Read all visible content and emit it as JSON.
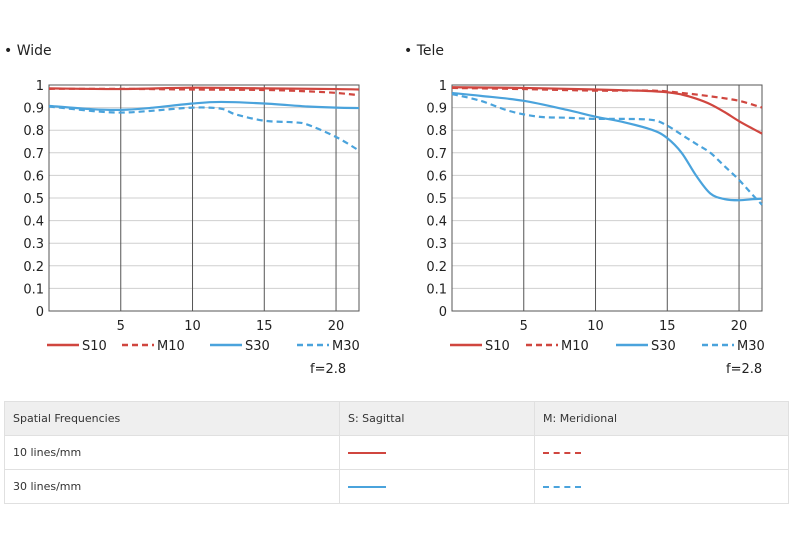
{
  "chart_data": [
    {
      "type": "line",
      "title": "• Wide",
      "xlim": [
        0,
        21.6
      ],
      "ylim": [
        0,
        1
      ],
      "xticks": [
        5,
        10,
        15,
        20
      ],
      "yticks": [
        0,
        0.1,
        0.2,
        0.3,
        0.4,
        0.5,
        0.6,
        0.7,
        0.8,
        0.9,
        1
      ],
      "ytick_labels": [
        "0",
        "0.1",
        "0.2",
        "0.3",
        "0.4",
        "0.5",
        "0.6",
        "0.7",
        "0.8",
        "0.9",
        "1"
      ],
      "grid": true,
      "legend_position": "bottom",
      "f_number": "f=2.8",
      "series": [
        {
          "name": "S10",
          "color": "#d0463f",
          "dashed": false,
          "x": [
            0,
            5,
            10,
            15,
            20,
            21.6
          ],
          "y": [
            0.985,
            0.982,
            0.988,
            0.985,
            0.982,
            0.98
          ]
        },
        {
          "name": "M10",
          "color": "#d0463f",
          "dashed": true,
          "x": [
            0,
            5,
            10,
            15,
            18,
            20,
            21.6
          ],
          "y": [
            0.983,
            0.983,
            0.98,
            0.978,
            0.972,
            0.965,
            0.955
          ]
        },
        {
          "name": "S30",
          "color": "#4aa3dc",
          "dashed": false,
          "x": [
            0,
            3,
            5,
            7,
            10,
            12,
            15,
            18,
            20,
            21.6
          ],
          "y": [
            0.908,
            0.893,
            0.89,
            0.898,
            0.918,
            0.925,
            0.918,
            0.905,
            0.9,
            0.898
          ]
        },
        {
          "name": "M30",
          "color": "#4aa3dc",
          "dashed": true,
          "x": [
            0,
            3,
            5,
            7,
            10,
            12,
            13,
            15,
            17,
            18,
            20,
            21.6
          ],
          "y": [
            0.905,
            0.885,
            0.878,
            0.885,
            0.9,
            0.895,
            0.87,
            0.842,
            0.835,
            0.825,
            0.77,
            0.71
          ]
        }
      ]
    },
    {
      "type": "line",
      "title": "• Tele",
      "xlim": [
        0,
        21.6
      ],
      "ylim": [
        0,
        1
      ],
      "xticks": [
        5,
        10,
        15,
        20
      ],
      "yticks": [
        0,
        0.1,
        0.2,
        0.3,
        0.4,
        0.5,
        0.6,
        0.7,
        0.8,
        0.9,
        1
      ],
      "ytick_labels": [
        "0",
        "0.1",
        "0.2",
        "0.3",
        "0.4",
        "0.5",
        "0.6",
        "0.7",
        "0.8",
        "0.9",
        "1"
      ],
      "grid": true,
      "legend_position": "bottom",
      "f_number": "f=2.8",
      "series": [
        {
          "name": "S10",
          "color": "#d0463f",
          "dashed": false,
          "x": [
            0,
            5,
            10,
            13,
            15,
            16,
            17,
            18,
            19,
            20,
            21,
            21.6
          ],
          "y": [
            0.99,
            0.987,
            0.98,
            0.975,
            0.968,
            0.958,
            0.94,
            0.915,
            0.88,
            0.84,
            0.805,
            0.785
          ]
        },
        {
          "name": "M10",
          "color": "#d0463f",
          "dashed": true,
          "x": [
            0,
            5,
            10,
            14,
            16,
            18,
            20,
            21.6
          ],
          "y": [
            0.987,
            0.982,
            0.975,
            0.975,
            0.965,
            0.95,
            0.93,
            0.9
          ]
        },
        {
          "name": "S30",
          "color": "#4aa3dc",
          "dashed": false,
          "x": [
            0,
            2,
            5,
            8,
            10,
            12,
            14,
            15,
            16,
            17,
            18,
            19,
            20,
            21,
            21.6
          ],
          "y": [
            0.965,
            0.952,
            0.93,
            0.89,
            0.86,
            0.835,
            0.8,
            0.765,
            0.7,
            0.6,
            0.52,
            0.495,
            0.49,
            0.495,
            0.497
          ]
        },
        {
          "name": "M30",
          "color": "#4aa3dc",
          "dashed": true,
          "x": [
            0,
            2,
            4,
            6,
            8,
            10,
            12,
            14,
            15,
            16,
            17,
            18,
            19,
            20,
            21,
            21.6
          ],
          "y": [
            0.96,
            0.93,
            0.885,
            0.86,
            0.855,
            0.85,
            0.85,
            0.845,
            0.82,
            0.78,
            0.74,
            0.7,
            0.64,
            0.58,
            0.51,
            0.47
          ]
        }
      ]
    }
  ],
  "legend_table": {
    "headers": [
      "Spatial Frequencies",
      "S: Sagittal",
      "M: Meridional"
    ],
    "rows": [
      {
        "label": "10 lines/mm"
      },
      {
        "label": "30 lines/mm"
      }
    ]
  }
}
